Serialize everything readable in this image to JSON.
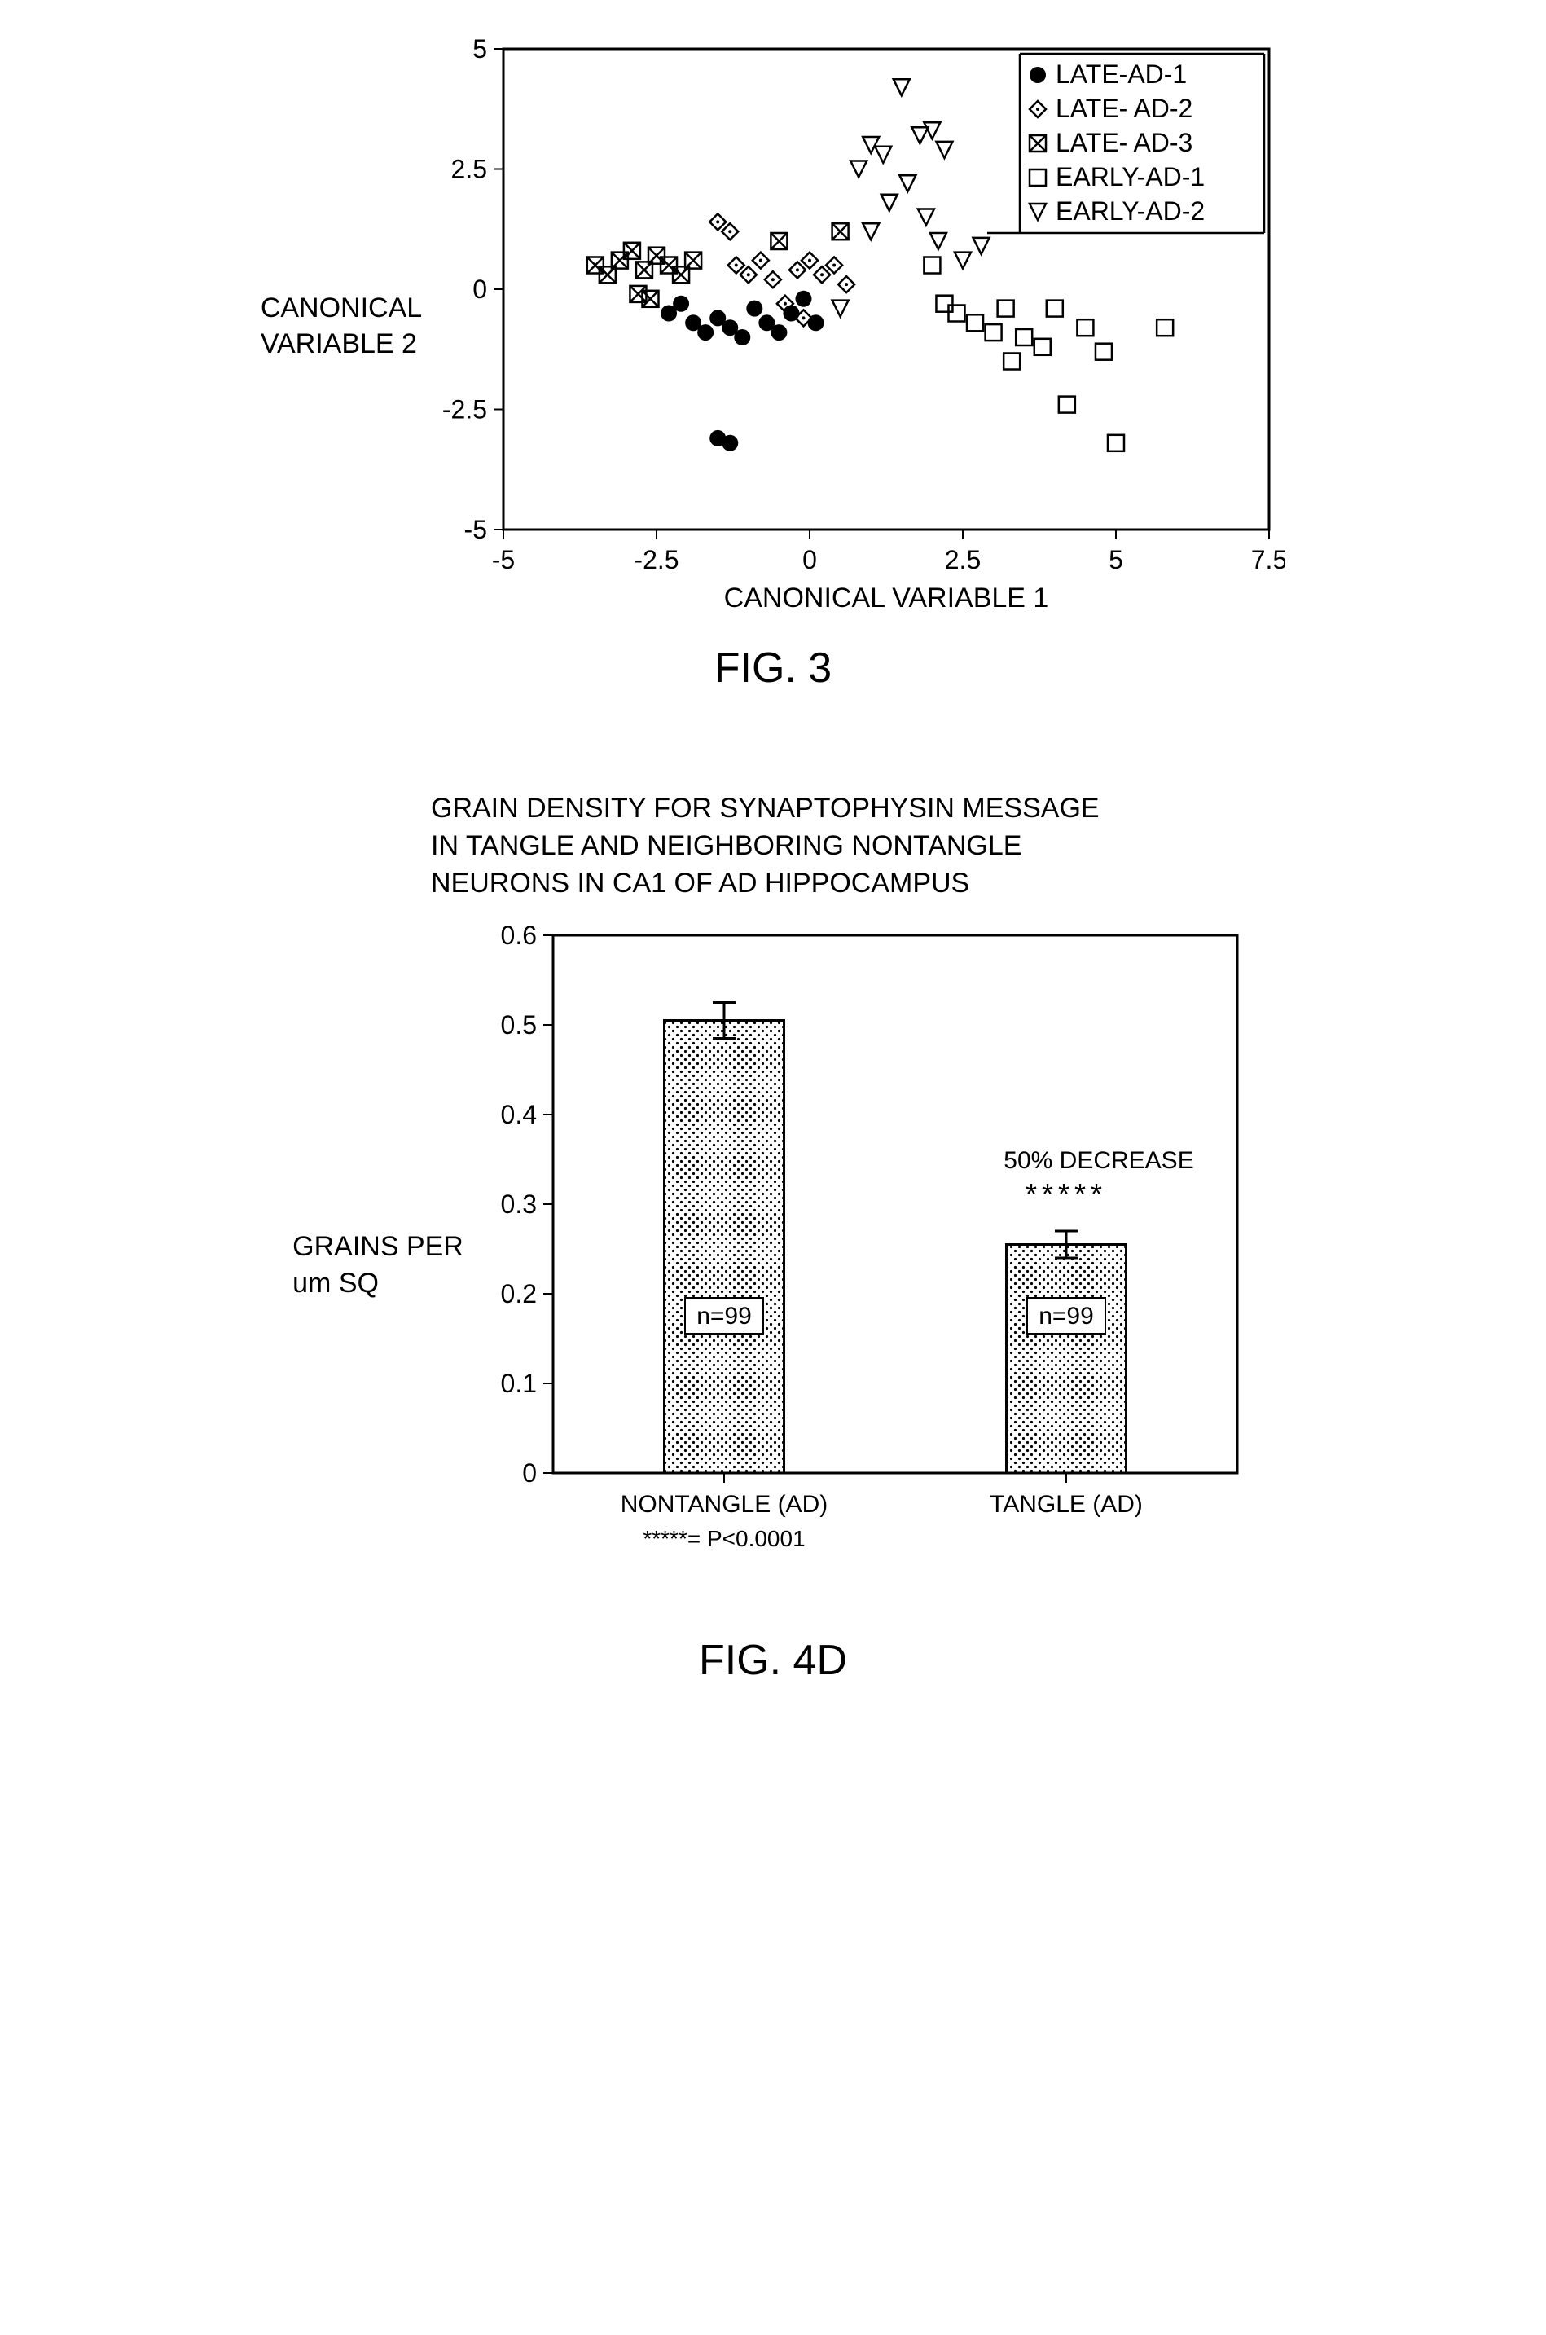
{
  "fig3": {
    "type": "scatter",
    "caption": "FIG. 3",
    "xlabel": "CANONICAL VARIABLE 1",
    "ylabel_line1": "CANONICAL",
    "ylabel_line2": "VARIABLE 2",
    "xlim": [
      -5,
      7.5
    ],
    "ylim": [
      -5,
      5
    ],
    "xticks": [
      -5,
      -2.5,
      0,
      2.5,
      5,
      7.5
    ],
    "yticks": [
      -5,
      -2.5,
      0,
      2.5,
      5
    ],
    "background_color": "#ffffff",
    "border_color": "#000000",
    "border_width": 3,
    "tick_font_size": 32,
    "label_font_size": 34,
    "marker_size": 10,
    "legend": {
      "items": [
        {
          "label": "LATE-AD-1",
          "marker": "filled-circle",
          "color": "#000000"
        },
        {
          "label": "LATE- AD-2",
          "marker": "open-diamond",
          "color": "#000000"
        },
        {
          "label": "LATE- AD-3",
          "marker": "crossed-square",
          "color": "#000000"
        },
        {
          "label": "EARLY-AD-1",
          "marker": "open-square",
          "color": "#000000"
        },
        {
          "label": "EARLY-AD-2",
          "marker": "open-triangle-down",
          "color": "#000000"
        }
      ],
      "font_size": 32,
      "position": "top-right"
    },
    "series": [
      {
        "marker": "filled-circle",
        "color": "#000000",
        "points": [
          [
            -2.3,
            -0.5
          ],
          [
            -2.1,
            -0.3
          ],
          [
            -1.9,
            -0.7
          ],
          [
            -1.7,
            -0.9
          ],
          [
            -1.5,
            -0.6
          ],
          [
            -1.3,
            -0.8
          ],
          [
            -1.1,
            -1.0
          ],
          [
            -0.9,
            -0.4
          ],
          [
            -0.7,
            -0.7
          ],
          [
            -0.5,
            -0.9
          ],
          [
            -1.5,
            -3.1
          ],
          [
            -1.3,
            -3.2
          ],
          [
            -0.3,
            -0.5
          ],
          [
            0.1,
            -0.7
          ],
          [
            -0.1,
            -0.2
          ]
        ]
      },
      {
        "marker": "open-diamond",
        "color": "#000000",
        "points": [
          [
            -1.2,
            0.5
          ],
          [
            -1.0,
            0.3
          ],
          [
            -0.8,
            0.6
          ],
          [
            -0.6,
            0.2
          ],
          [
            -0.4,
            -0.3
          ],
          [
            -0.2,
            0.4
          ],
          [
            0.0,
            0.6
          ],
          [
            0.2,
            0.3
          ],
          [
            0.4,
            0.5
          ],
          [
            -1.5,
            1.4
          ],
          [
            -1.3,
            1.2
          ],
          [
            0.6,
            0.1
          ],
          [
            -0.1,
            -0.6
          ]
        ]
      },
      {
        "marker": "crossed-square",
        "color": "#000000",
        "points": [
          [
            -3.5,
            0.5
          ],
          [
            -3.3,
            0.3
          ],
          [
            -3.1,
            0.6
          ],
          [
            -2.9,
            0.8
          ],
          [
            -2.7,
            0.4
          ],
          [
            -2.5,
            0.7
          ],
          [
            -2.3,
            0.5
          ],
          [
            -2.1,
            0.3
          ],
          [
            -2.8,
            -0.1
          ],
          [
            -2.6,
            -0.2
          ],
          [
            -1.9,
            0.6
          ],
          [
            -0.5,
            1.0
          ],
          [
            0.5,
            1.2
          ]
        ]
      },
      {
        "marker": "open-square",
        "color": "#000000",
        "points": [
          [
            2.0,
            0.5
          ],
          [
            2.2,
            -0.3
          ],
          [
            2.4,
            -0.5
          ],
          [
            2.7,
            -0.7
          ],
          [
            3.0,
            -0.9
          ],
          [
            3.2,
            -0.4
          ],
          [
            3.5,
            -1.0
          ],
          [
            3.8,
            -1.2
          ],
          [
            4.0,
            -0.4
          ],
          [
            4.2,
            -2.4
          ],
          [
            4.5,
            -0.8
          ],
          [
            5.0,
            -3.2
          ],
          [
            5.8,
            -0.8
          ],
          [
            3.3,
            -1.5
          ],
          [
            4.8,
            -1.3
          ]
        ]
      },
      {
        "marker": "open-triangle-down",
        "color": "#000000",
        "points": [
          [
            0.8,
            2.5
          ],
          [
            1.0,
            3.0
          ],
          [
            1.2,
            2.8
          ],
          [
            1.5,
            4.2
          ],
          [
            1.8,
            3.2
          ],
          [
            2.0,
            3.3
          ],
          [
            2.2,
            2.9
          ],
          [
            1.3,
            1.8
          ],
          [
            1.6,
            2.2
          ],
          [
            1.9,
            1.5
          ],
          [
            0.5,
            -0.4
          ],
          [
            2.5,
            0.6
          ],
          [
            2.8,
            0.9
          ],
          [
            1.0,
            1.2
          ],
          [
            2.1,
            1.0
          ]
        ]
      }
    ]
  },
  "fig4d": {
    "type": "bar",
    "caption": "FIG. 4D",
    "title": "GRAIN DENSITY FOR SYNAPTOPHYSIN MESSAGE IN TANGLE AND NEIGHBORING NONTANGLE NEURONS IN CA1 OF AD HIPPOCAMPUS",
    "ylabel_line1": "GRAINS PER",
    "ylabel_line2": "um SQ",
    "ylim": [
      0,
      0.6
    ],
    "yticks": [
      0,
      0.1,
      0.2,
      0.3,
      0.4,
      0.5,
      0.6
    ],
    "categories": [
      "NONTANGLE (AD)",
      "TANGLE (AD)"
    ],
    "values": [
      0.505,
      0.255
    ],
    "errors": [
      0.02,
      0.015
    ],
    "n_labels": [
      "n=99",
      "n=99"
    ],
    "annotation_text": "50% DECREASE",
    "sig_marker": "*****",
    "footnote": "*****= P<0.0001",
    "bar_fill": "pattern-dots",
    "bar_dot_color": "#000000",
    "bar_background": "#ffffff",
    "border_color": "#000000",
    "border_width": 3,
    "tick_font_size": 32,
    "label_font_size": 34,
    "bar_width_ratio": 0.35
  }
}
